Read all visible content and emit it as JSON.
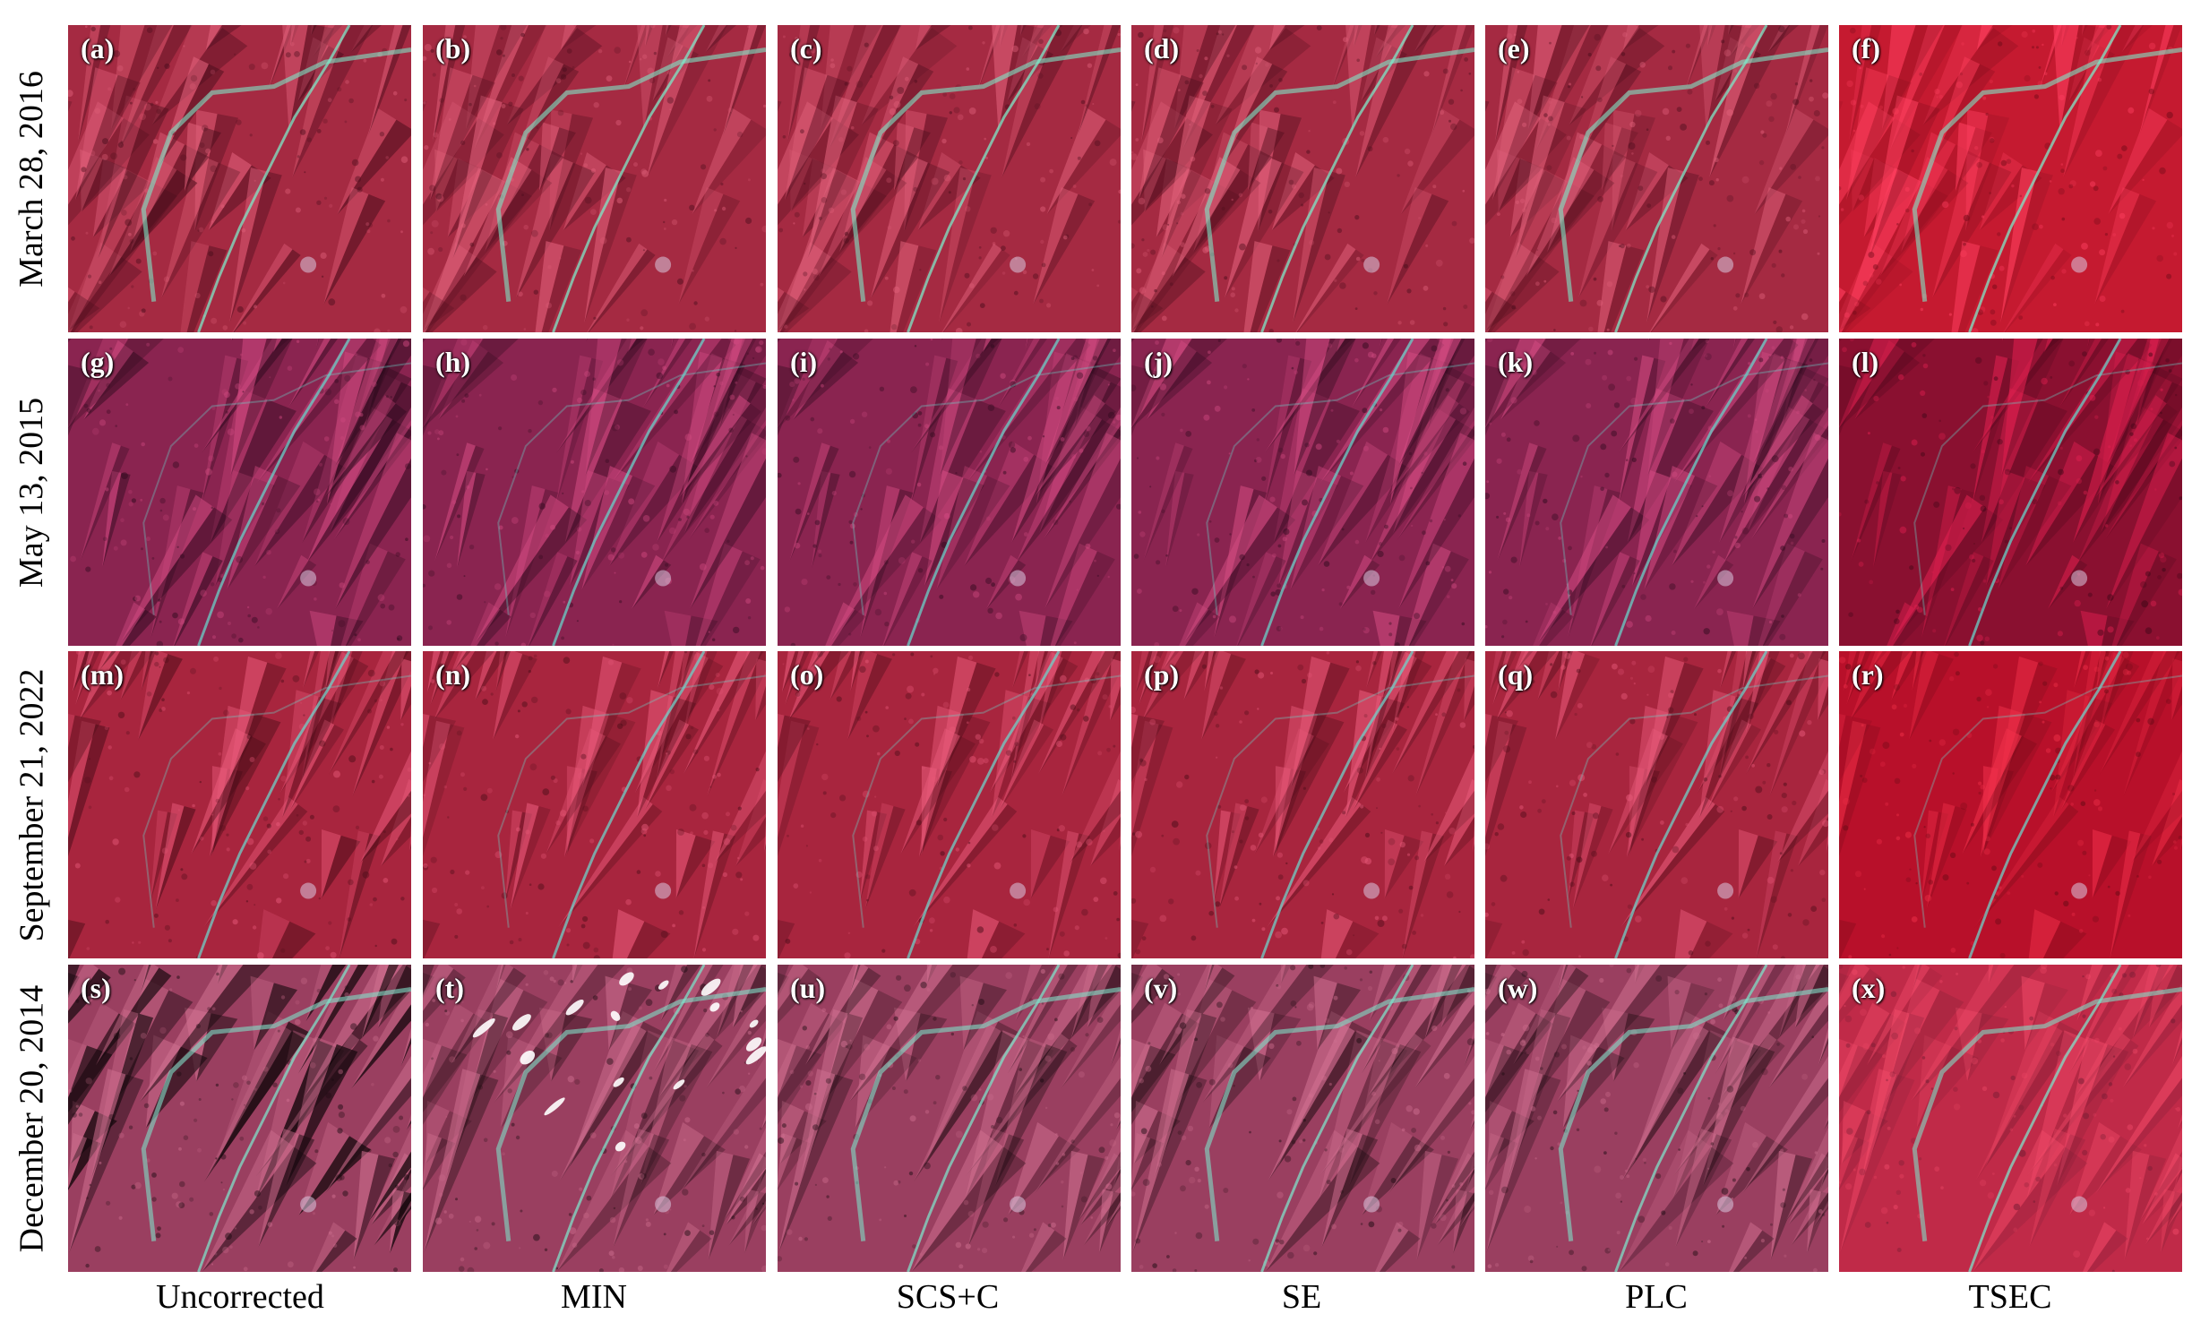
{
  "row_labels": [
    "March 28, 2016",
    "May 13, 2015",
    "September 21, 2022",
    "December 20, 2014"
  ],
  "column_labels": [
    "Uncorrected",
    "MIN",
    "SCS+C",
    "SE",
    "PLC",
    "TSEC"
  ],
  "panel_tags": [
    [
      "(a)",
      "(b)",
      "(c)",
      "(d)",
      "(e)",
      "(f)"
    ],
    [
      "(g)",
      "(h)",
      "(i)",
      "(j)",
      "(k)",
      "(l)"
    ],
    [
      "(m)",
      "(n)",
      "(o)",
      "(p)",
      "(q)",
      "(r)"
    ],
    [
      "(s)",
      "(t)",
      "(u)",
      "(v)",
      "(w)",
      "(x)"
    ]
  ],
  "row_palettes": [
    {
      "base": "#a52a42",
      "dark": "#4a0d1c",
      "light": "#e0607a",
      "river": "#7fe8c8"
    },
    {
      "base": "#8a2450",
      "dark": "#2e0a1e",
      "light": "#d04a80",
      "river": "#6ad0c8"
    },
    {
      "base": "#a8253e",
      "dark": "#4a0c18",
      "light": "#e85a7a",
      "river": "#70d0c8"
    },
    {
      "base": "#9a3f60",
      "dark": "#1a0a10",
      "light": "#d07090",
      "river": "#80e0c8"
    }
  ],
  "tsec_palettes": [
    {
      "base": "#c51a30",
      "dark": "#700a18",
      "light": "#ff4060"
    },
    {
      "base": "#8a1030",
      "dark": "#3a0616",
      "light": "#e02050"
    },
    {
      "base": "#b8102a",
      "dark": "#600a14",
      "light": "#f0304a"
    },
    {
      "base": "#c02a48",
      "dark": "#6a1a30",
      "light": "#f04a68"
    }
  ]
}
